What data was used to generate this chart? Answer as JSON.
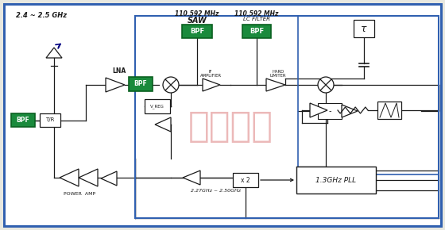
{
  "bg_color": "#e8e8e0",
  "border_color": "#3060b0",
  "fig_bg": "#e8e8e0",
  "green_color": "#1a8a3c",
  "green_dark": "#0a6020",
  "watermark_color": "#d05050",
  "watermark_text": "康比电子",
  "freq_label_1": "2.4 ~ 2.5 GHz",
  "freq_label_2": "110.592 MHz",
  "freq_label_3": "SAW",
  "freq_label_4": "110.592 MHz",
  "freq_label_5": "LC FILTER",
  "label_lna": "LNA",
  "label_bpf": "BPF",
  "label_tr": "T/R",
  "label_if_amp": "IF\nAMPLIFIER",
  "label_hard_limiter": "HARD\nLIMITER",
  "label_power_amp": "POWER  AMP",
  "label_vreg": "V_REG",
  "label_x2": "x 2",
  "label_freq_range": "2.27GHz ~ 2.50GHz",
  "label_pll": "1.3GHz PLL",
  "label_tau": "τ"
}
